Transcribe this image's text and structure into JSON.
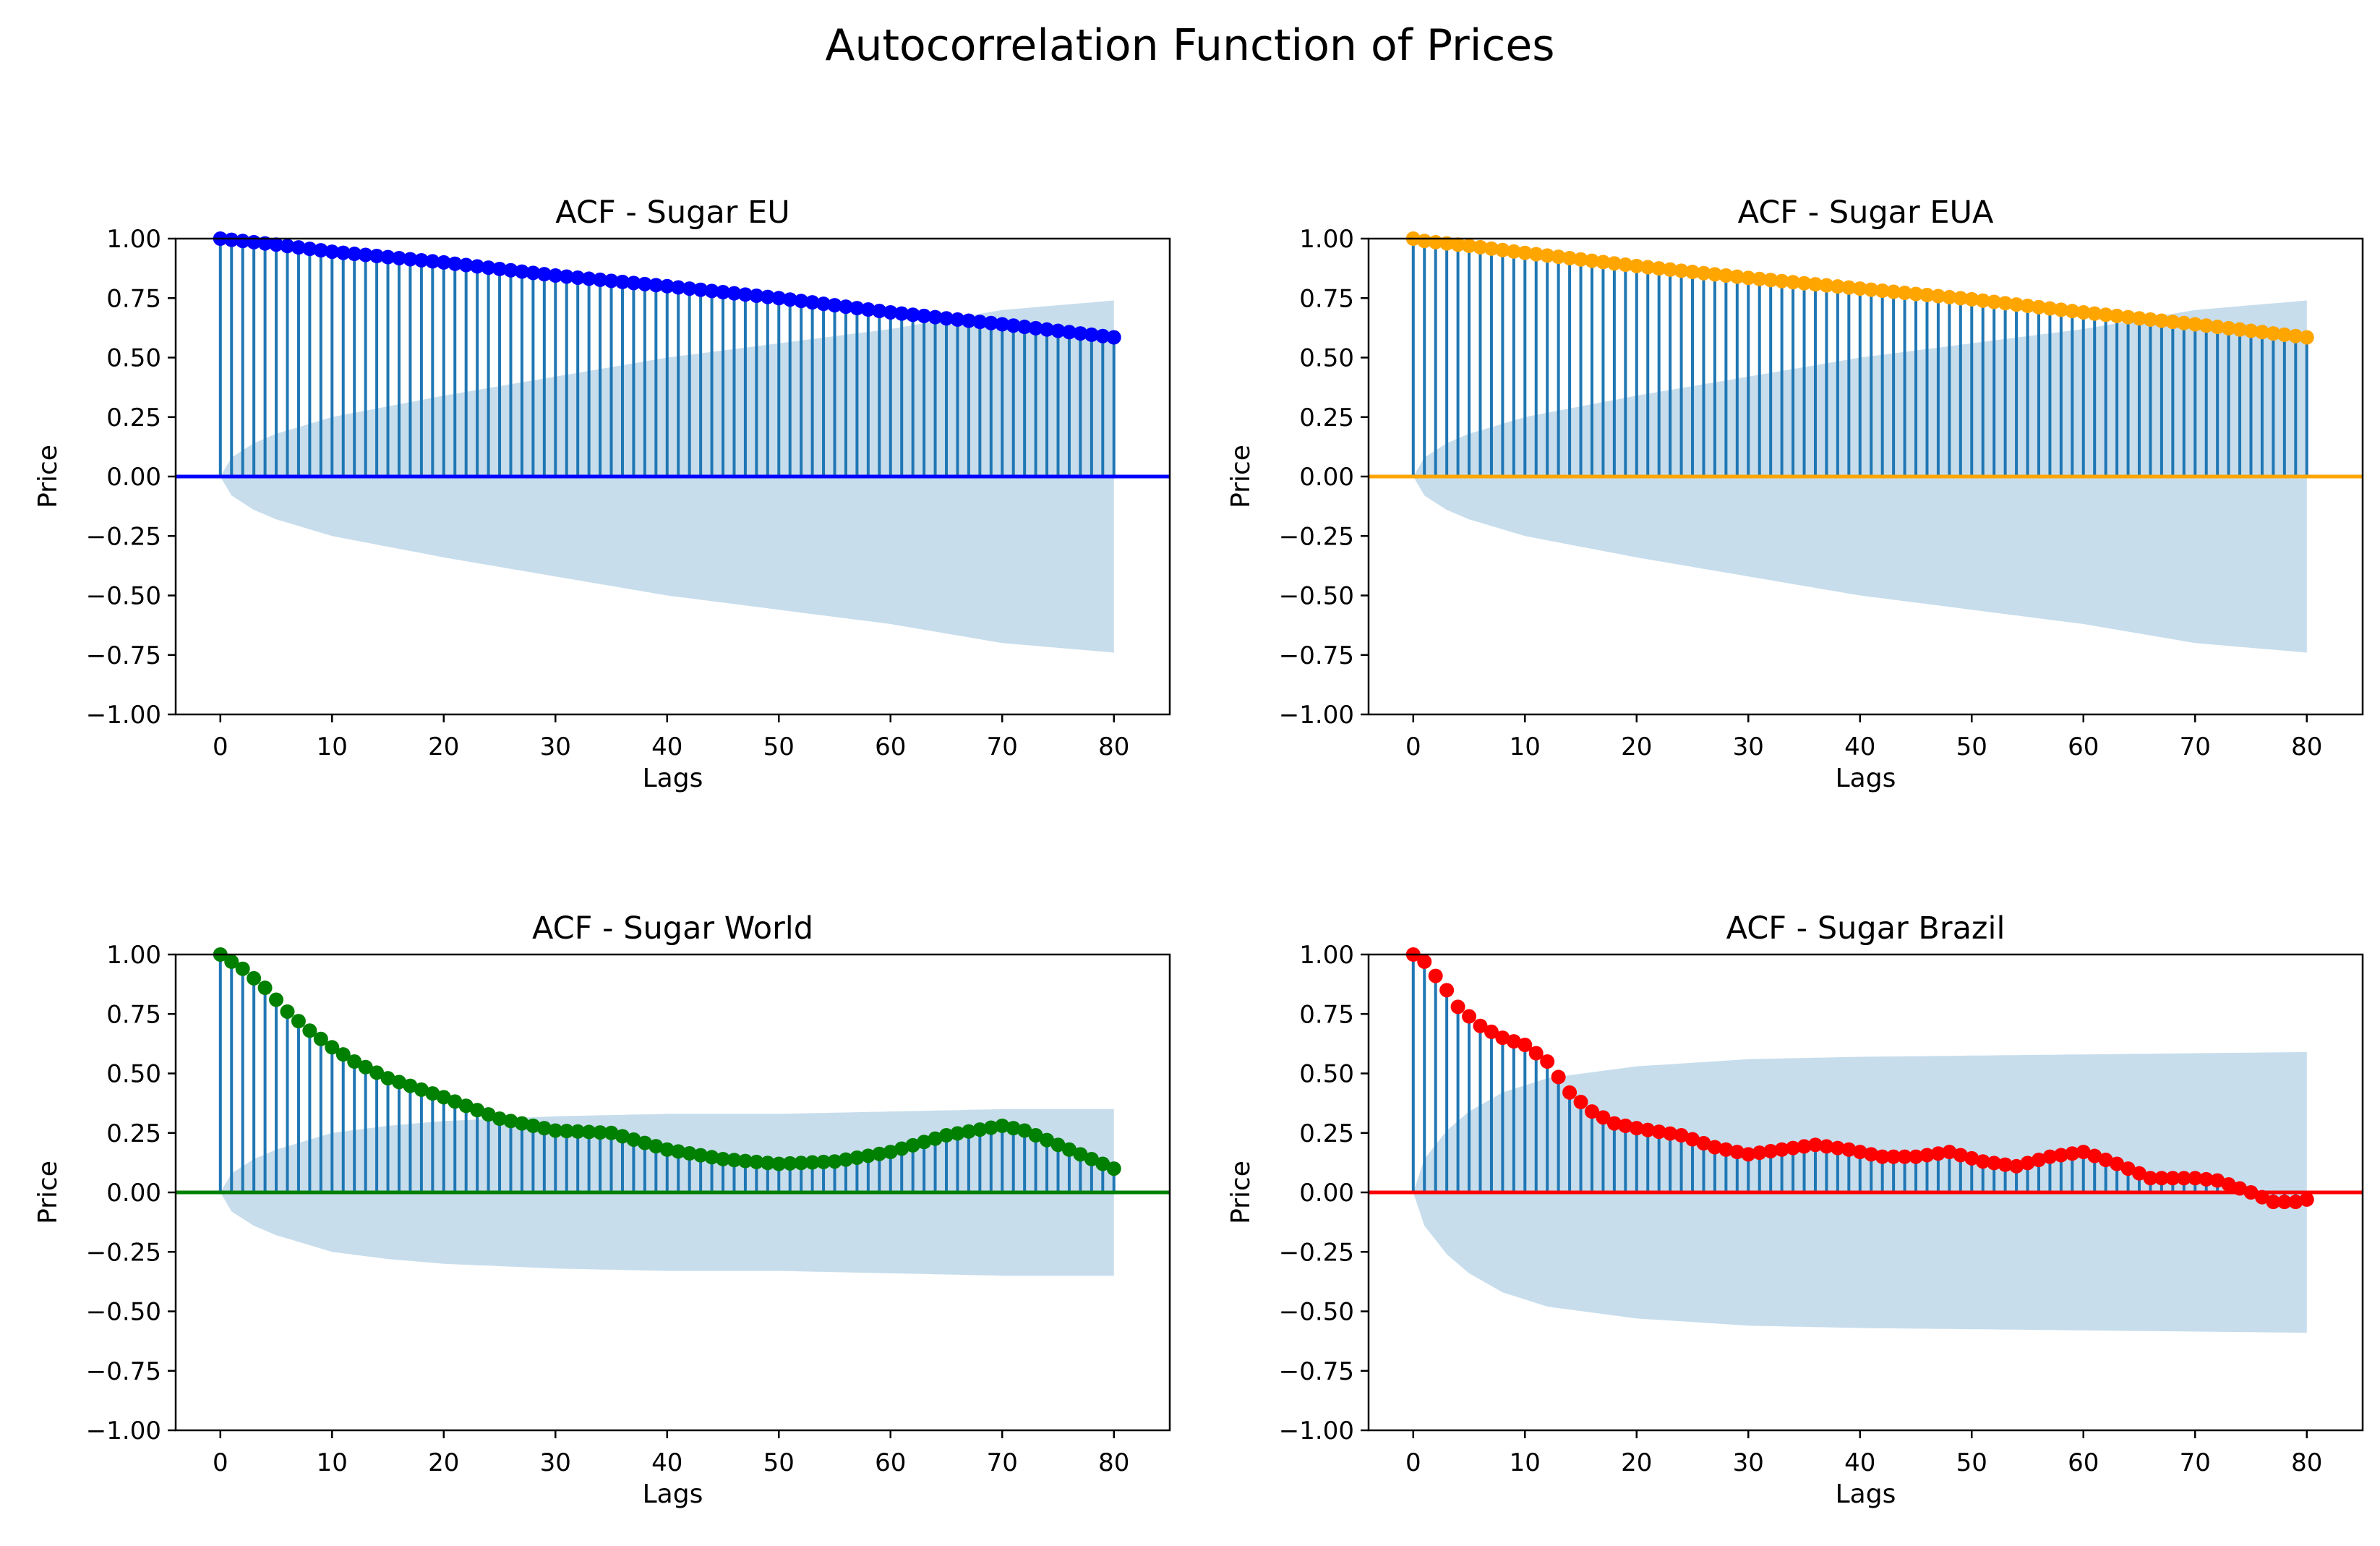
{
  "figure": {
    "title": "Autocorrelation Function of Prices"
  },
  "chart_data": [
    {
      "type": "stem",
      "title": "ACF - Sugar EU",
      "xlabel": "Lags",
      "ylabel": "Price",
      "xlim": [
        -4,
        85
      ],
      "ylim": [
        -1.0,
        1.0
      ],
      "xticks": [
        0,
        10,
        20,
        30,
        40,
        50,
        60,
        70,
        80
      ],
      "yticks": [
        1.0,
        0.75,
        0.5,
        0.25,
        0.0,
        -0.25,
        -0.5,
        -0.75,
        -1.0
      ],
      "color": "#0000ff",
      "band_color": "#1f77b4",
      "stem_color": "#1f77b4",
      "lag_anchors": [
        [
          0,
          1.0
        ],
        [
          1,
          0.995
        ],
        [
          5,
          0.975
        ],
        [
          10,
          0.945
        ],
        [
          20,
          0.9
        ],
        [
          30,
          0.845
        ],
        [
          40,
          0.8
        ],
        [
          50,
          0.75
        ],
        [
          60,
          0.69
        ],
        [
          70,
          0.64
        ],
        [
          80,
          0.585
        ]
      ],
      "confint_anchors": [
        [
          0,
          0.0
        ],
        [
          1,
          0.08
        ],
        [
          3,
          0.14
        ],
        [
          5,
          0.18
        ],
        [
          10,
          0.25
        ],
        [
          20,
          0.34
        ],
        [
          30,
          0.42
        ],
        [
          40,
          0.5
        ],
        [
          50,
          0.56
        ],
        [
          60,
          0.62
        ],
        [
          70,
          0.7
        ],
        [
          80,
          0.74
        ]
      ]
    },
    {
      "type": "stem",
      "title": "ACF - Sugar EUA",
      "xlabel": "Lags",
      "ylabel": "Price",
      "xlim": [
        -4,
        85
      ],
      "ylim": [
        -1.0,
        1.0
      ],
      "xticks": [
        0,
        10,
        20,
        30,
        40,
        50,
        60,
        70,
        80
      ],
      "yticks": [
        1.0,
        0.75,
        0.5,
        0.25,
        0.0,
        -0.25,
        -0.5,
        -0.75,
        -1.0
      ],
      "color": "#ffa500",
      "band_color": "#1f77b4",
      "stem_color": "#1f77b4",
      "lag_anchors": [
        [
          0,
          1.0
        ],
        [
          1,
          0.99
        ],
        [
          5,
          0.97
        ],
        [
          10,
          0.94
        ],
        [
          20,
          0.885
        ],
        [
          30,
          0.835
        ],
        [
          40,
          0.79
        ],
        [
          50,
          0.745
        ],
        [
          60,
          0.69
        ],
        [
          70,
          0.64
        ],
        [
          80,
          0.585
        ]
      ],
      "confint_anchors": [
        [
          0,
          0.0
        ],
        [
          1,
          0.08
        ],
        [
          3,
          0.14
        ],
        [
          5,
          0.18
        ],
        [
          10,
          0.25
        ],
        [
          20,
          0.34
        ],
        [
          30,
          0.42
        ],
        [
          40,
          0.5
        ],
        [
          50,
          0.56
        ],
        [
          60,
          0.62
        ],
        [
          70,
          0.7
        ],
        [
          80,
          0.74
        ]
      ]
    },
    {
      "type": "stem",
      "title": "ACF - Sugar World",
      "xlabel": "Lags",
      "ylabel": "Price",
      "xlim": [
        -4,
        85
      ],
      "ylim": [
        -1.0,
        1.0
      ],
      "xticks": [
        0,
        10,
        20,
        30,
        40,
        50,
        60,
        70,
        80
      ],
      "yticks": [
        1.0,
        0.75,
        0.5,
        0.25,
        0.0,
        -0.25,
        -0.5,
        -0.75,
        -1.0
      ],
      "color": "#008000",
      "band_color": "#1f77b4",
      "stem_color": "#1f77b4",
      "lag_anchors": [
        [
          0,
          1.0
        ],
        [
          2,
          0.94
        ],
        [
          4,
          0.86
        ],
        [
          6,
          0.76
        ],
        [
          8,
          0.68
        ],
        [
          10,
          0.61
        ],
        [
          12,
          0.55
        ],
        [
          15,
          0.48
        ],
        [
          20,
          0.4
        ],
        [
          25,
          0.31
        ],
        [
          30,
          0.26
        ],
        [
          35,
          0.25
        ],
        [
          40,
          0.18
        ],
        [
          45,
          0.14
        ],
        [
          50,
          0.12
        ],
        [
          55,
          0.13
        ],
        [
          60,
          0.17
        ],
        [
          65,
          0.24
        ],
        [
          70,
          0.28
        ],
        [
          72,
          0.26
        ],
        [
          75,
          0.2
        ],
        [
          80,
          0.1
        ]
      ],
      "confint_anchors": [
        [
          0,
          0.0
        ],
        [
          1,
          0.08
        ],
        [
          3,
          0.14
        ],
        [
          5,
          0.18
        ],
        [
          10,
          0.25
        ],
        [
          15,
          0.28
        ],
        [
          20,
          0.3
        ],
        [
          30,
          0.32
        ],
        [
          40,
          0.33
        ],
        [
          50,
          0.33
        ],
        [
          60,
          0.34
        ],
        [
          70,
          0.35
        ],
        [
          80,
          0.35
        ]
      ]
    },
    {
      "type": "stem",
      "title": "ACF - Sugar Brazil",
      "xlabel": "Lags",
      "ylabel": "Price",
      "xlim": [
        -4,
        85
      ],
      "ylim": [
        -1.0,
        1.0
      ],
      "xticks": [
        0,
        10,
        20,
        30,
        40,
        50,
        60,
        70,
        80
      ],
      "yticks": [
        1.0,
        0.75,
        0.5,
        0.25,
        0.0,
        -0.25,
        -0.5,
        -0.75,
        -1.0
      ],
      "color": "#ff0000",
      "band_color": "#1f77b4",
      "stem_color": "#1f77b4",
      "lag_anchors": [
        [
          0,
          1.0
        ],
        [
          1,
          0.97
        ],
        [
          2,
          0.91
        ],
        [
          3,
          0.85
        ],
        [
          4,
          0.78
        ],
        [
          6,
          0.7
        ],
        [
          8,
          0.65
        ],
        [
          10,
          0.62
        ],
        [
          12,
          0.55
        ],
        [
          14,
          0.42
        ],
        [
          16,
          0.34
        ],
        [
          18,
          0.29
        ],
        [
          20,
          0.27
        ],
        [
          24,
          0.24
        ],
        [
          27,
          0.19
        ],
        [
          30,
          0.16
        ],
        [
          33,
          0.18
        ],
        [
          36,
          0.2
        ],
        [
          39,
          0.18
        ],
        [
          42,
          0.15
        ],
        [
          45,
          0.15
        ],
        [
          48,
          0.17
        ],
        [
          51,
          0.13
        ],
        [
          54,
          0.11
        ],
        [
          57,
          0.15
        ],
        [
          60,
          0.17
        ],
        [
          63,
          0.12
        ],
        [
          66,
          0.06
        ],
        [
          70,
          0.06
        ],
        [
          72,
          0.05
        ],
        [
          75,
          0.0
        ],
        [
          77,
          -0.04
        ],
        [
          79,
          -0.04
        ],
        [
          80,
          -0.03
        ]
      ],
      "confint_anchors": [
        [
          0,
          0.0
        ],
        [
          1,
          0.14
        ],
        [
          3,
          0.26
        ],
        [
          5,
          0.34
        ],
        [
          8,
          0.42
        ],
        [
          12,
          0.48
        ],
        [
          20,
          0.53
        ],
        [
          30,
          0.56
        ],
        [
          40,
          0.57
        ],
        [
          60,
          0.58
        ],
        [
          80,
          0.59
        ]
      ]
    }
  ]
}
